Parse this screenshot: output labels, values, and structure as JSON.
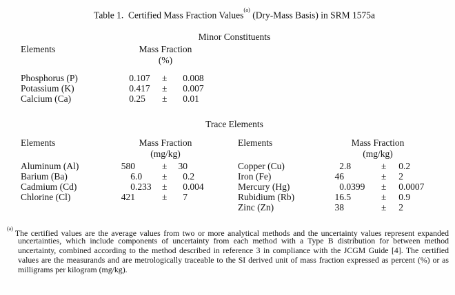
{
  "title": {
    "prefix": "Table 1.  Certified Mass Fraction Values",
    "superscript": "(a)",
    "suffix": " (Dry-Mass Basis) in SRM 1575a"
  },
  "minor_section": {
    "heading": "Minor Constituents",
    "elements_header": "Elements",
    "mass_fraction_header": "Mass Fraction",
    "unit": "(%)",
    "plus_minus": "±",
    "rows": [
      {
        "element": "Phosphorus (P)",
        "value": "0.107",
        "uncertainty": "0.008"
      },
      {
        "element": "Potassium (K)",
        "value": "0.417",
        "uncertainty": "0.007"
      },
      {
        "element": "Calcium (Ca)",
        "value": "0.25",
        "uncertainty": "0.01"
      }
    ]
  },
  "trace_section": {
    "heading": "Trace Elements",
    "left_table": {
      "elements_header": "Elements",
      "mass_fraction_header": "Mass Fraction",
      "unit": "(mg/kg)",
      "plus_minus": "±",
      "rows": [
        {
          "element": "Aluminum (Al)",
          "value": "580",
          "uncertainty": "30"
        },
        {
          "element": "Barium (Ba)",
          "value": "6.0",
          "uncertainty": "0.2"
        },
        {
          "element": "Cadmium (Cd)",
          "value": "0.233",
          "uncertainty": "0.004"
        },
        {
          "element": "Chlorine (Cl)",
          "value": "421",
          "uncertainty": "7"
        }
      ]
    },
    "right_table": {
      "elements_header": "Elements",
      "mass_fraction_header": "Mass Fraction",
      "unit": "(mg/kg)",
      "plus_minus": "±",
      "rows": [
        {
          "element": "Copper (Cu)",
          "value": "2.8",
          "uncertainty": "0.2"
        },
        {
          "element": "Iron (Fe)",
          "value": "46",
          "uncertainty": "2"
        },
        {
          "element": "Mercury (Hg)",
          "value": "0.0399",
          "uncertainty": "0.0007"
        },
        {
          "element": "Rubidium (Rb)",
          "value": "16.5",
          "uncertainty": "0.9"
        },
        {
          "element": "Zinc (Zn)",
          "value": "38",
          "uncertainty": "2"
        }
      ]
    }
  },
  "footnote": {
    "marker": "(a)",
    "lines": [
      "The certified values are the average values from two or more analytical methods and the uncertainty values represent expanded",
      "uncertainties, which include components of uncertainty from each method with a Type B distribution for between method",
      "uncertainty, combined according to the method described in reference 3 in compliance with the JCGM Guide [4].  The certified",
      "values are the measurands and are metrologically traceable to the SI derived unit of mass fraction expressed as percent (%) or as",
      "milligrams per kilogram (mg/kg)."
    ]
  }
}
